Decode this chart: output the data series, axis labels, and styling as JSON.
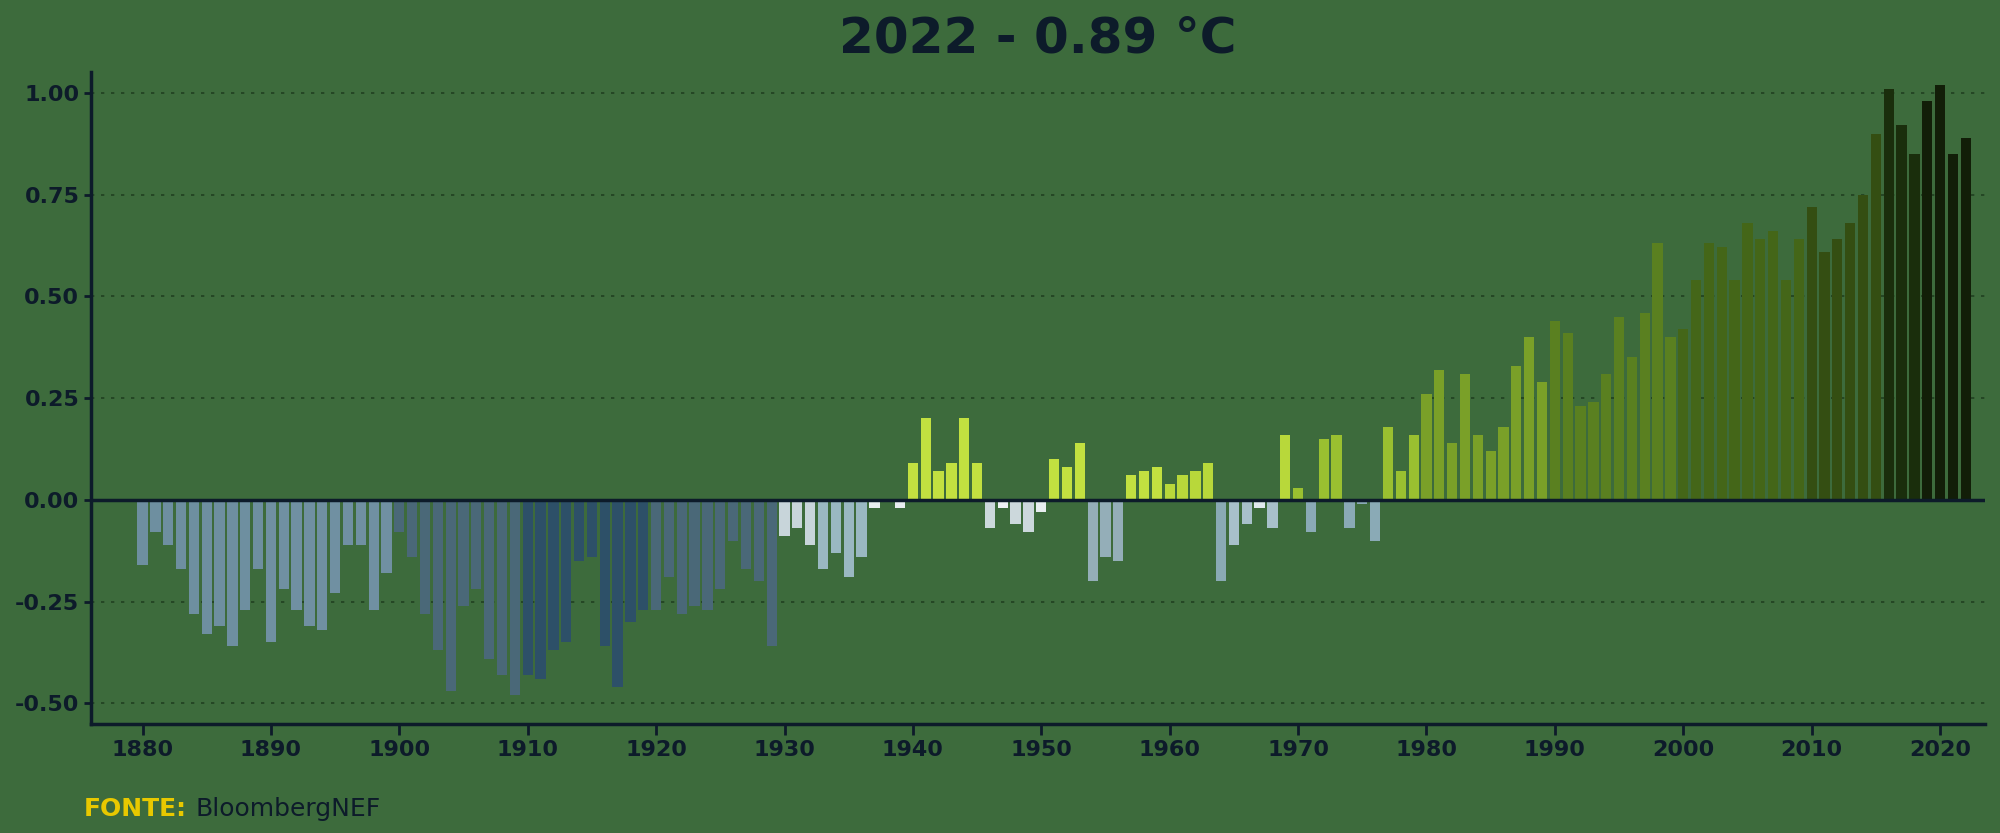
{
  "title": "2022 - 0.89 °C",
  "fonte_label": "FONTE:",
  "fonte_source": "BloombergNEF",
  "background_color": "#3d6b3c",
  "ylim": [
    -0.55,
    1.05
  ],
  "yticks": [
    -0.5,
    -0.25,
    0.0,
    0.25,
    0.5,
    0.75,
    1.0
  ],
  "xticks": [
    1880,
    1890,
    1900,
    1910,
    1920,
    1930,
    1940,
    1950,
    1960,
    1970,
    1980,
    1990,
    2000,
    2010,
    2020
  ],
  "years": [
    1880,
    1881,
    1882,
    1883,
    1884,
    1885,
    1886,
    1887,
    1888,
    1889,
    1890,
    1891,
    1892,
    1893,
    1894,
    1895,
    1896,
    1897,
    1898,
    1899,
    1900,
    1901,
    1902,
    1903,
    1904,
    1905,
    1906,
    1907,
    1908,
    1909,
    1910,
    1911,
    1912,
    1913,
    1914,
    1915,
    1916,
    1917,
    1918,
    1919,
    1920,
    1921,
    1922,
    1923,
    1924,
    1925,
    1926,
    1927,
    1928,
    1929,
    1930,
    1931,
    1932,
    1933,
    1934,
    1935,
    1936,
    1937,
    1938,
    1939,
    1940,
    1941,
    1942,
    1943,
    1944,
    1945,
    1946,
    1947,
    1948,
    1949,
    1950,
    1951,
    1952,
    1953,
    1954,
    1955,
    1956,
    1957,
    1958,
    1959,
    1960,
    1961,
    1962,
    1963,
    1964,
    1965,
    1966,
    1967,
    1968,
    1969,
    1970,
    1971,
    1972,
    1973,
    1974,
    1975,
    1976,
    1977,
    1978,
    1979,
    1980,
    1981,
    1982,
    1983,
    1984,
    1985,
    1986,
    1987,
    1988,
    1989,
    1990,
    1991,
    1992,
    1993,
    1994,
    1995,
    1996,
    1997,
    1998,
    1999,
    2000,
    2001,
    2002,
    2003,
    2004,
    2005,
    2006,
    2007,
    2008,
    2009,
    2010,
    2011,
    2012,
    2013,
    2014,
    2015,
    2016,
    2017,
    2018,
    2019,
    2020,
    2021,
    2022
  ],
  "anomalies": [
    -0.16,
    -0.08,
    -0.11,
    -0.17,
    -0.28,
    -0.33,
    -0.31,
    -0.36,
    -0.27,
    -0.17,
    -0.35,
    -0.22,
    -0.27,
    -0.31,
    -0.32,
    -0.23,
    -0.11,
    -0.11,
    -0.27,
    -0.18,
    -0.08,
    -0.14,
    -0.28,
    -0.37,
    -0.47,
    -0.26,
    -0.22,
    -0.39,
    -0.43,
    -0.48,
    -0.43,
    -0.44,
    -0.37,
    -0.35,
    -0.15,
    -0.14,
    -0.36,
    -0.46,
    -0.3,
    -0.27,
    -0.27,
    -0.19,
    -0.28,
    -0.26,
    -0.27,
    -0.22,
    -0.1,
    -0.17,
    -0.2,
    -0.36,
    -0.09,
    -0.07,
    -0.11,
    -0.17,
    -0.13,
    -0.19,
    -0.14,
    -0.02,
    -0.0,
    -0.02,
    0.09,
    0.2,
    0.07,
    0.09,
    0.2,
    0.09,
    -0.07,
    -0.02,
    -0.06,
    -0.08,
    -0.03,
    0.1,
    0.08,
    0.14,
    -0.2,
    -0.14,
    -0.15,
    0.06,
    0.07,
    0.08,
    0.04,
    0.06,
    0.07,
    0.09,
    -0.2,
    -0.11,
    -0.06,
    -0.02,
    -0.07,
    0.16,
    0.03,
    -0.08,
    0.15,
    0.16,
    -0.07,
    -0.01,
    -0.1,
    0.18,
    0.07,
    0.16,
    0.26,
    0.32,
    0.14,
    0.31,
    0.16,
    0.12,
    0.18,
    0.33,
    0.4,
    0.29,
    0.44,
    0.41,
    0.23,
    0.24,
    0.31,
    0.45,
    0.35,
    0.46,
    0.63,
    0.4,
    0.42,
    0.54,
    0.63,
    0.62,
    0.54,
    0.68,
    0.64,
    0.66,
    0.54,
    0.64,
    0.72,
    0.61,
    0.64,
    0.68,
    0.75,
    0.9,
    1.01,
    0.92,
    0.85,
    0.98,
    1.02,
    0.85,
    0.89
  ]
}
